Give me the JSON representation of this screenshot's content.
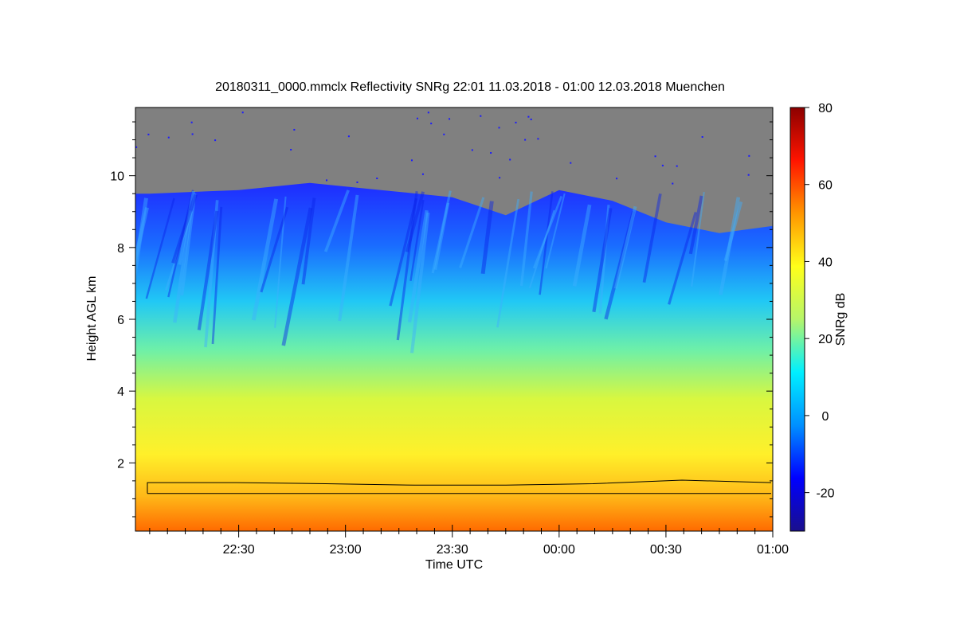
{
  "chart_data": {
    "type": "heatmap",
    "title": "20180311_0000.mmclx Reflectivity SNRg   22:01 11.03.2018 - 01:00 12.03.2018 Muenchen",
    "xlabel": "Time UTC",
    "ylabel": "Height AGL km",
    "x_range": [
      "22:01",
      "01:00"
    ],
    "x_ticks": [
      "22:30",
      "23:00",
      "23:30",
      "00:00",
      "00:30",
      "01:00"
    ],
    "ylim": [
      0.1,
      11.9
    ],
    "y_ticks": [
      2,
      4,
      6,
      8,
      10
    ],
    "no_signal_color": "#808080",
    "colorbar": {
      "label": "SNRg dB",
      "range": [
        -30,
        80
      ],
      "ticks": [
        -20,
        0,
        20,
        40,
        60,
        80
      ],
      "colors": [
        "#1a0f8c",
        "#0000ff",
        "#0090ff",
        "#00f0ff",
        "#b6f56a",
        "#ffff1a",
        "#ff9600",
        "#ff1400",
        "#8c0000"
      ]
    },
    "cloud_top_km": [
      {
        "time": "22:05",
        "km": 9.5
      },
      {
        "time": "22:30",
        "km": 9.6
      },
      {
        "time": "22:50",
        "km": 9.8
      },
      {
        "time": "23:10",
        "km": 9.6
      },
      {
        "time": "23:30",
        "km": 9.4
      },
      {
        "time": "23:45",
        "km": 8.9
      },
      {
        "time": "00:00",
        "km": 9.6
      },
      {
        "time": "00:15",
        "km": 9.3
      },
      {
        "time": "00:30",
        "km": 8.7
      },
      {
        "time": "00:45",
        "km": 8.4
      },
      {
        "time": "01:00",
        "km": 8.6
      }
    ],
    "lines": [
      {
        "name": "",
        "km": [
          1.45,
          1.45,
          1.42,
          1.38,
          1.38,
          1.42,
          1.52,
          1.45
        ]
      },
      {
        "name": "",
        "km": [
          1.15,
          1.15,
          1.15,
          1.15,
          1.15,
          1.15,
          1.15,
          1.15
        ]
      }
    ]
  }
}
